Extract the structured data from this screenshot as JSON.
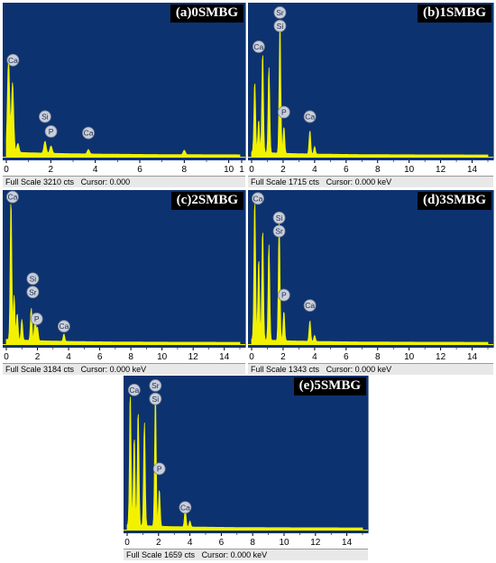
{
  "colors": {
    "background": "#0d3270",
    "spectrum": "#f2f200",
    "marker_fill": "#c9cfda",
    "label_bg": "#000000",
    "label_text": "#ffffff"
  },
  "chart_data": [
    {
      "type": "area",
      "label": "(a)0SMBG",
      "xlim": [
        0,
        10.5
      ],
      "x_ticks": [
        "0",
        "2",
        "4",
        "6",
        "8",
        "10",
        "1"
      ],
      "status": {
        "scale": "Full Scale 3210 cts",
        "cursor": "Cursor: 0.000"
      },
      "peaks": [
        {
          "x": 0.1,
          "y": 0.62
        },
        {
          "x": 0.28,
          "y": 0.47
        },
        {
          "x": 0.52,
          "y": 0.06
        },
        {
          "x": 1.74,
          "y": 0.08
        },
        {
          "x": 2.01,
          "y": 0.05
        },
        {
          "x": 3.69,
          "y": 0.03
        },
        {
          "x": 8.0,
          "y": 0.03
        }
      ],
      "markers": [
        {
          "label": "Ca",
          "x": 0.3,
          "y": 0.65
        },
        {
          "label": "Si",
          "x": 1.74,
          "y": 0.27
        },
        {
          "label": "P",
          "x": 2.01,
          "y": 0.17
        },
        {
          "label": "Ca",
          "x": 3.69,
          "y": 0.16
        }
      ]
    },
    {
      "type": "area",
      "label": "(b)1SMBG",
      "xlim": [
        0,
        15
      ],
      "x_ticks": [
        "0",
        "2",
        "4",
        "6",
        "8",
        "10",
        "12",
        "14"
      ],
      "status": {
        "scale": "Full Scale 1715 cts",
        "cursor": "Cursor: 0.000 keV"
      },
      "peaks": [
        {
          "x": 0.2,
          "y": 0.48
        },
        {
          "x": 0.45,
          "y": 0.22
        },
        {
          "x": 0.7,
          "y": 0.68
        },
        {
          "x": 1.1,
          "y": 0.58
        },
        {
          "x": 1.8,
          "y": 0.9
        },
        {
          "x": 2.05,
          "y": 0.18
        },
        {
          "x": 3.7,
          "y": 0.16
        },
        {
          "x": 4.0,
          "y": 0.05
        }
      ],
      "markers": [
        {
          "label": "Ca",
          "x": 0.45,
          "y": 0.74
        },
        {
          "label": "Sr",
          "x": 1.8,
          "y": 0.97
        },
        {
          "label": "Si",
          "x": 1.8,
          "y": 0.88
        },
        {
          "label": "P",
          "x": 2.05,
          "y": 0.3
        },
        {
          "label": "Ca",
          "x": 3.7,
          "y": 0.27
        }
      ]
    },
    {
      "type": "area",
      "label": "(c)2SMBG",
      "xlim": [
        0,
        15
      ],
      "x_ticks": [
        "0",
        "2",
        "4",
        "6",
        "8",
        "10",
        "12",
        "14"
      ],
      "status": {
        "scale": "Full Scale 3184 cts",
        "cursor": "Cursor: 0.000 keV"
      },
      "peaks": [
        {
          "x": 0.3,
          "y": 0.95
        },
        {
          "x": 0.5,
          "y": 0.3
        },
        {
          "x": 0.7,
          "y": 0.18
        },
        {
          "x": 1.0,
          "y": 0.14
        },
        {
          "x": 1.6,
          "y": 0.22
        },
        {
          "x": 1.85,
          "y": 0.16
        },
        {
          "x": 2.0,
          "y": 0.09
        },
        {
          "x": 3.7,
          "y": 0.05
        }
      ],
      "markers": [
        {
          "label": "Ca",
          "x": 0.4,
          "y": 0.99
        },
        {
          "label": "Si",
          "x": 1.7,
          "y": 0.44
        },
        {
          "label": "Sr",
          "x": 1.7,
          "y": 0.35
        },
        {
          "label": "P",
          "x": 1.95,
          "y": 0.17
        },
        {
          "label": "Ca",
          "x": 3.7,
          "y": 0.12
        }
      ]
    },
    {
      "type": "area",
      "label": "(d)3SMBG",
      "xlim": [
        0,
        15
      ],
      "x_ticks": [
        "0",
        "2",
        "4",
        "6",
        "8",
        "10",
        "12",
        "14"
      ],
      "status": {
        "scale": "Full Scale 1343 cts",
        "cursor": "Cursor: 0.000 keV"
      },
      "peaks": [
        {
          "x": 0.2,
          "y": 0.95
        },
        {
          "x": 0.45,
          "y": 0.55
        },
        {
          "x": 0.7,
          "y": 0.75
        },
        {
          "x": 1.1,
          "y": 0.65
        },
        {
          "x": 1.75,
          "y": 0.8
        },
        {
          "x": 2.05,
          "y": 0.2
        },
        {
          "x": 3.7,
          "y": 0.14
        },
        {
          "x": 4.0,
          "y": 0.04
        }
      ],
      "markers": [
        {
          "label": "Ca",
          "x": 0.4,
          "y": 0.98
        },
        {
          "label": "Si",
          "x": 1.75,
          "y": 0.85
        },
        {
          "label": "Sr",
          "x": 1.75,
          "y": 0.76
        },
        {
          "label": "P",
          "x": 2.05,
          "y": 0.33
        },
        {
          "label": "Ca",
          "x": 3.7,
          "y": 0.26
        }
      ]
    },
    {
      "type": "area",
      "label": "(e)5SMBG",
      "xlim": [
        0,
        15
      ],
      "x_ticks": [
        "0",
        "2",
        "4",
        "6",
        "8",
        "10",
        "12",
        "14"
      ],
      "status": {
        "scale": "Full Scale 1659 cts",
        "cursor": "Cursor: 0.000 keV"
      },
      "peaks": [
        {
          "x": 0.2,
          "y": 0.9
        },
        {
          "x": 0.45,
          "y": 0.6
        },
        {
          "x": 0.7,
          "y": 0.78
        },
        {
          "x": 1.1,
          "y": 0.7
        },
        {
          "x": 1.8,
          "y": 0.9
        },
        {
          "x": 2.05,
          "y": 0.25
        },
        {
          "x": 3.7,
          "y": 0.12
        },
        {
          "x": 4.0,
          "y": 0.04
        }
      ],
      "markers": [
        {
          "label": "Ca",
          "x": 0.45,
          "y": 0.94
        },
        {
          "label": "Sr",
          "x": 1.8,
          "y": 0.97
        },
        {
          "label": "Si",
          "x": 1.8,
          "y": 0.88
        },
        {
          "label": "P",
          "x": 2.05,
          "y": 0.41
        },
        {
          "label": "Ca",
          "x": 3.7,
          "y": 0.15
        }
      ]
    }
  ]
}
